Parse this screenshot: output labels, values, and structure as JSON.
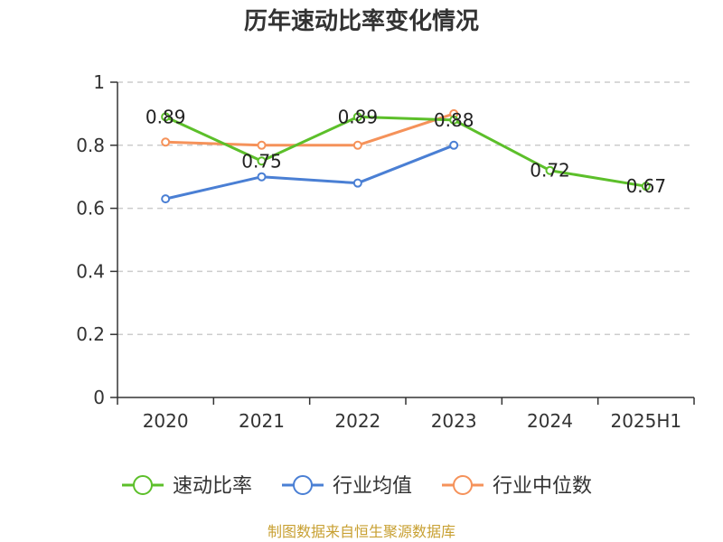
{
  "chart_data": {
    "type": "line",
    "title": "历年速动比率变化情况",
    "categories": [
      "2020",
      "2021",
      "2022",
      "2023",
      "2024",
      "2025H1"
    ],
    "ylim": [
      0,
      1
    ],
    "yticks": [
      "0",
      "0.2",
      "0.4",
      "0.6",
      "0.8",
      "1"
    ],
    "grid": true,
    "legend_position": "bottom",
    "series": [
      {
        "name": "速动比率",
        "color": "#5cbf2a",
        "values": [
          0.89,
          0.75,
          0.89,
          0.88,
          0.72,
          0.67
        ],
        "labels": [
          "0.89",
          "0.75",
          "0.89",
          "0.88",
          "0.72",
          "0.67"
        ]
      },
      {
        "name": "行业均值",
        "color": "#4a7fd4",
        "values": [
          0.63,
          0.7,
          0.68,
          0.8,
          null,
          null
        ]
      },
      {
        "name": "行业中位数",
        "color": "#f5925a",
        "values": [
          0.81,
          0.8,
          0.8,
          0.9,
          null,
          null
        ]
      }
    ]
  },
  "source": "制图数据来自恒生聚源数据库"
}
